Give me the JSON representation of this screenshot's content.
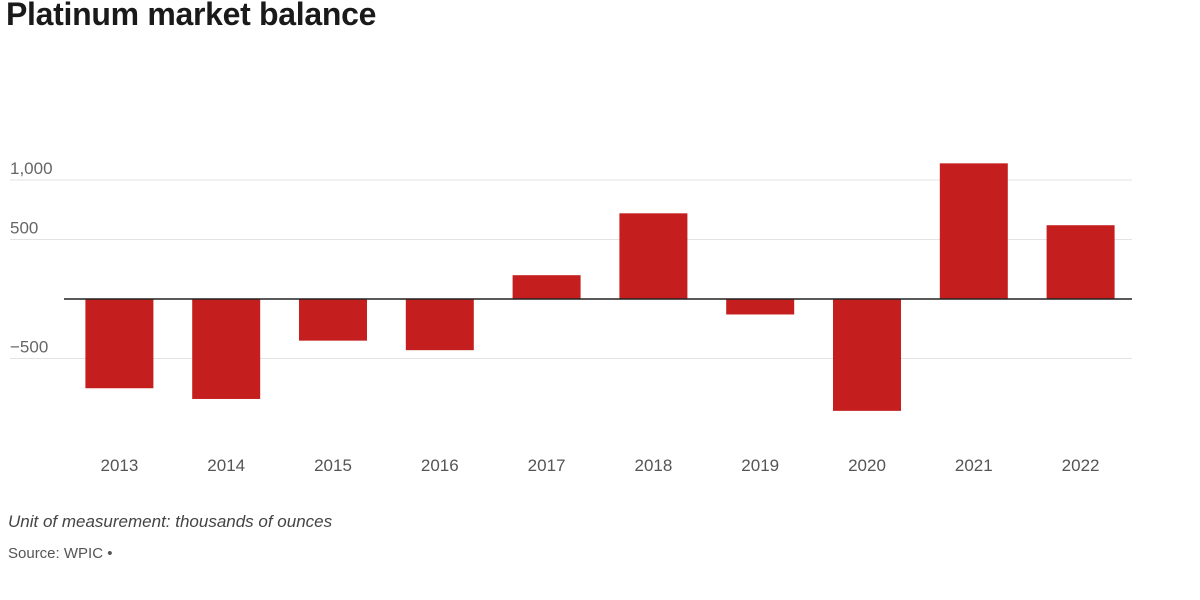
{
  "chart_data": {
    "type": "bar",
    "title": "Platinum market balance",
    "categories": [
      "2013",
      "2014",
      "2015",
      "2016",
      "2017",
      "2018",
      "2019",
      "2020",
      "2021",
      "2022"
    ],
    "values": [
      -750,
      -840,
      -350,
      -430,
      200,
      720,
      -130,
      -940,
      1140,
      620
    ],
    "ylim": [
      -1100,
      1250
    ],
    "yticks": [
      1000,
      500,
      -500
    ],
    "ytick_labels": [
      "1,000",
      "500",
      "−500"
    ],
    "bar_color": "#c41e1e",
    "grid": true,
    "xlabel": "",
    "ylabel": ""
  },
  "footer": {
    "unit_note": "Unit of measurement: thousands of ounces",
    "source": "Source: WPIC •"
  }
}
